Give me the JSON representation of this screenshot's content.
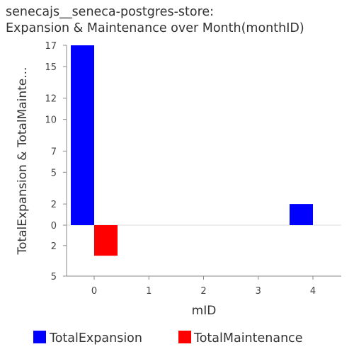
{
  "title_line1": "senecajs__seneca-postgres-store:",
  "title_line2": "Expansion & Maintenance over Month(monthID)",
  "chart_data": {
    "type": "bar",
    "title": "senecajs__seneca-postgres-store: Expansion & Maintenance over Month(monthID)",
    "xlabel": "mID",
    "ylabel": "TotalExpansion & TotalMainte...",
    "categories": [
      "0",
      "1",
      "2",
      "3",
      "4"
    ],
    "series": [
      {
        "name": "TotalExpansion",
        "color": "#0000ff",
        "values": [
          17,
          0,
          0,
          0,
          2
        ]
      },
      {
        "name": "TotalMaintenance",
        "color": "#ff0000",
        "values": [
          -3,
          0,
          0,
          0,
          0
        ]
      }
    ],
    "y_ticks": [
      {
        "value": 17,
        "label": "17"
      },
      {
        "value": 15,
        "label": "15"
      },
      {
        "value": 12,
        "label": "12"
      },
      {
        "value": 10,
        "label": "10"
      },
      {
        "value": 7,
        "label": "7"
      },
      {
        "value": 5,
        "label": "5"
      },
      {
        "value": 2,
        "label": "2"
      },
      {
        "value": 0,
        "label": "0"
      },
      {
        "value": -2,
        "label": "2"
      },
      {
        "value": -5,
        "label": "5"
      }
    ],
    "ylim": [
      -5,
      17
    ],
    "grid": true,
    "legend_position": "bottom"
  }
}
